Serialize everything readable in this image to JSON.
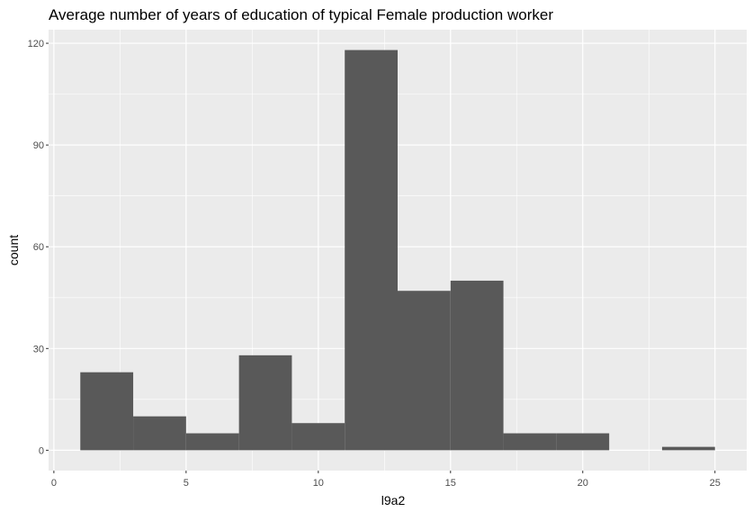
{
  "chart_data": {
    "type": "bar",
    "title": "Average number of years of education of typical Female production worker",
    "xlabel": "l9a2",
    "ylabel": "count",
    "xlim": [
      -0.2,
      26.2
    ],
    "ylim": [
      -6,
      124
    ],
    "x_ticks": [
      0,
      5,
      10,
      15,
      20,
      25
    ],
    "y_ticks": [
      0,
      30,
      60,
      90,
      120
    ],
    "bin_width": 2,
    "bins": [
      {
        "x0": 1,
        "x1": 3,
        "count": 23
      },
      {
        "x0": 3,
        "x1": 5,
        "count": 10
      },
      {
        "x0": 5,
        "x1": 7,
        "count": 5
      },
      {
        "x0": 7,
        "x1": 9,
        "count": 28
      },
      {
        "x0": 9,
        "x1": 11,
        "count": 8
      },
      {
        "x0": 11,
        "x1": 13,
        "count": 118
      },
      {
        "x0": 13,
        "x1": 15,
        "count": 47
      },
      {
        "x0": 15,
        "x1": 17,
        "count": 50
      },
      {
        "x0": 17,
        "x1": 19,
        "count": 5
      },
      {
        "x0": 19,
        "x1": 21,
        "count": 5
      },
      {
        "x0": 21,
        "x1": 23,
        "count": 0
      },
      {
        "x0": 23,
        "x1": 25,
        "count": 1
      }
    ],
    "grid": true,
    "legend": "none",
    "colors": {
      "panel_background": "#EBEBEB",
      "grid": "#FFFFFF",
      "bar_fill": "#595959",
      "tick_text": "#4D4D4D",
      "text": "#000000"
    }
  }
}
